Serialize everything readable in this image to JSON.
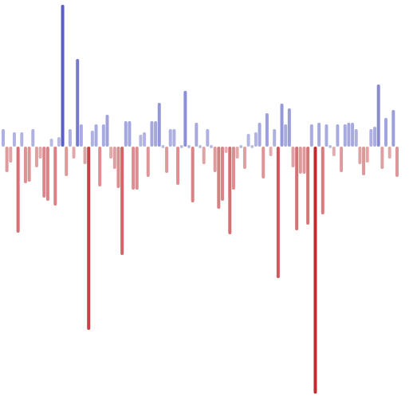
{
  "chart_data": {
    "type": "bar",
    "title": "",
    "xlabel": "",
    "ylabel": "",
    "grid": false,
    "legend": "none",
    "ylim": [
      -310,
      178
    ],
    "colors": {
      "positive_max": "#5a5fc4",
      "positive_min": "#cfd0ec",
      "negative_max": "#c22a2e",
      "negative_min": "#e8c2c3",
      "zero_dot": "#b9bde0"
    },
    "values": [
      22,
      -32,
      -20,
      18,
      -108,
      18,
      -46,
      -44,
      22,
      -26,
      -15,
      -64,
      -68,
      10,
      -74,
      12,
      178,
      -37,
      22,
      -15,
      110,
      28,
      -22,
      -230,
      20,
      28,
      -50,
      28,
      40,
      -15,
      -28,
      -52,
      -136,
      32,
      32,
      -54,
      -54,
      15,
      18,
      -38,
      32,
      32,
      55,
      0,
      -33,
      22,
      22,
      -48,
      0,
      70,
      0,
      -70,
      30,
      0,
      -22,
      22,
      0,
      -32,
      -78,
      -68,
      -8,
      -110,
      -54,
      -15,
      0,
      -28,
      16,
      0,
      18,
      30,
      -40,
      42,
      -12,
      22,
      -165,
      54,
      28,
      48,
      -26,
      -105,
      -34,
      -34,
      -98,
      28,
      -310,
      30,
      -85,
      28,
      0,
      -12,
      28,
      -32,
      28,
      30,
      30,
      22,
      -22,
      -36,
      -20,
      22,
      25,
      78,
      -28,
      36,
      -15,
      46,
      -38
    ]
  }
}
